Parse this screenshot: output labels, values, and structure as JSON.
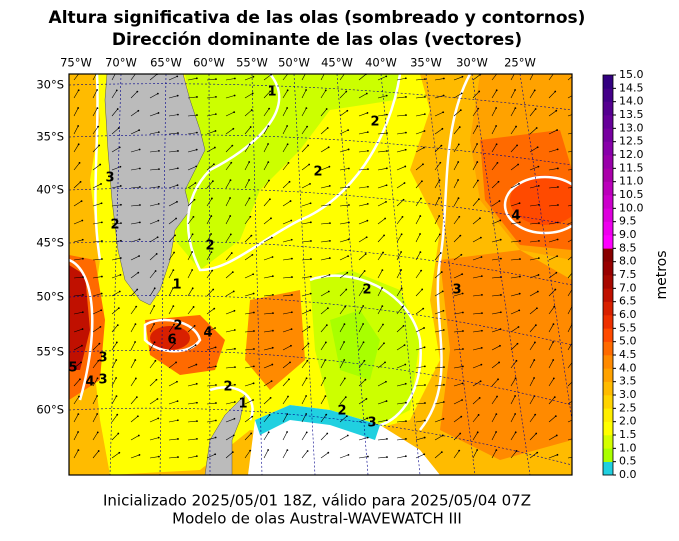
{
  "header": {
    "title": "Altura significativa de las olas (sombreado y contornos)",
    "subtitle": "Dirección dominante de las olas (vectores)"
  },
  "map": {
    "lon_ticks": [
      "75°W",
      "70°W",
      "65°W",
      "60°W",
      "55°W",
      "50°W",
      "45°W",
      "40°W",
      "35°W",
      "30°W",
      "25°W"
    ],
    "lat_ticks": [
      "30°S",
      "35°S",
      "40°S",
      "45°S",
      "50°S",
      "55°S",
      "60°S"
    ],
    "contour_labels": [
      "1",
      "2",
      "3",
      "2",
      "2",
      "3",
      "4",
      "2",
      "1",
      "2",
      "3",
      "5",
      "4",
      "3",
      "6",
      "4",
      "2",
      "2",
      "1",
      "2",
      "3"
    ]
  },
  "colorbar": {
    "label": "metros",
    "ticks": [
      "0.0",
      "0.5",
      "1.0",
      "1.5",
      "2.0",
      "2.5",
      "3.0",
      "3.5",
      "4.0",
      "4.5",
      "5.0",
      "5.5",
      "6.0",
      "6.5",
      "7.0",
      "7.5",
      "8.0",
      "8.5",
      "9.0",
      "9.5",
      "10.0",
      "10.5",
      "11.0",
      "11.5",
      "12.0",
      "12.5",
      "13.0",
      "13.5",
      "14.0",
      "14.5",
      "15.0"
    ],
    "colors": [
      "#20d0e0",
      "#aaff00",
      "#d4ff00",
      "#ffff00",
      "#ffee00",
      "#ffd400",
      "#ffbb00",
      "#ffa200",
      "#ff8a00",
      "#ff6a00",
      "#ff4a00",
      "#ee3000",
      "#d82000",
      "#c01000",
      "#a80800",
      "#980000",
      "#880000",
      "#ff00ff",
      "#ee00ee",
      "#dd00dd",
      "#cc00cc",
      "#bb00bb",
      "#aa00aa",
      "#9900aa",
      "#8800aa",
      "#7700a0",
      "#660099",
      "#550090",
      "#440088",
      "#330080"
    ]
  },
  "footer": {
    "line1": "Inicializado 2025/05/01 18Z, válido para 2025/05/04 07Z",
    "line2": "Modelo de olas Austral-WAVEWATCH III"
  }
}
